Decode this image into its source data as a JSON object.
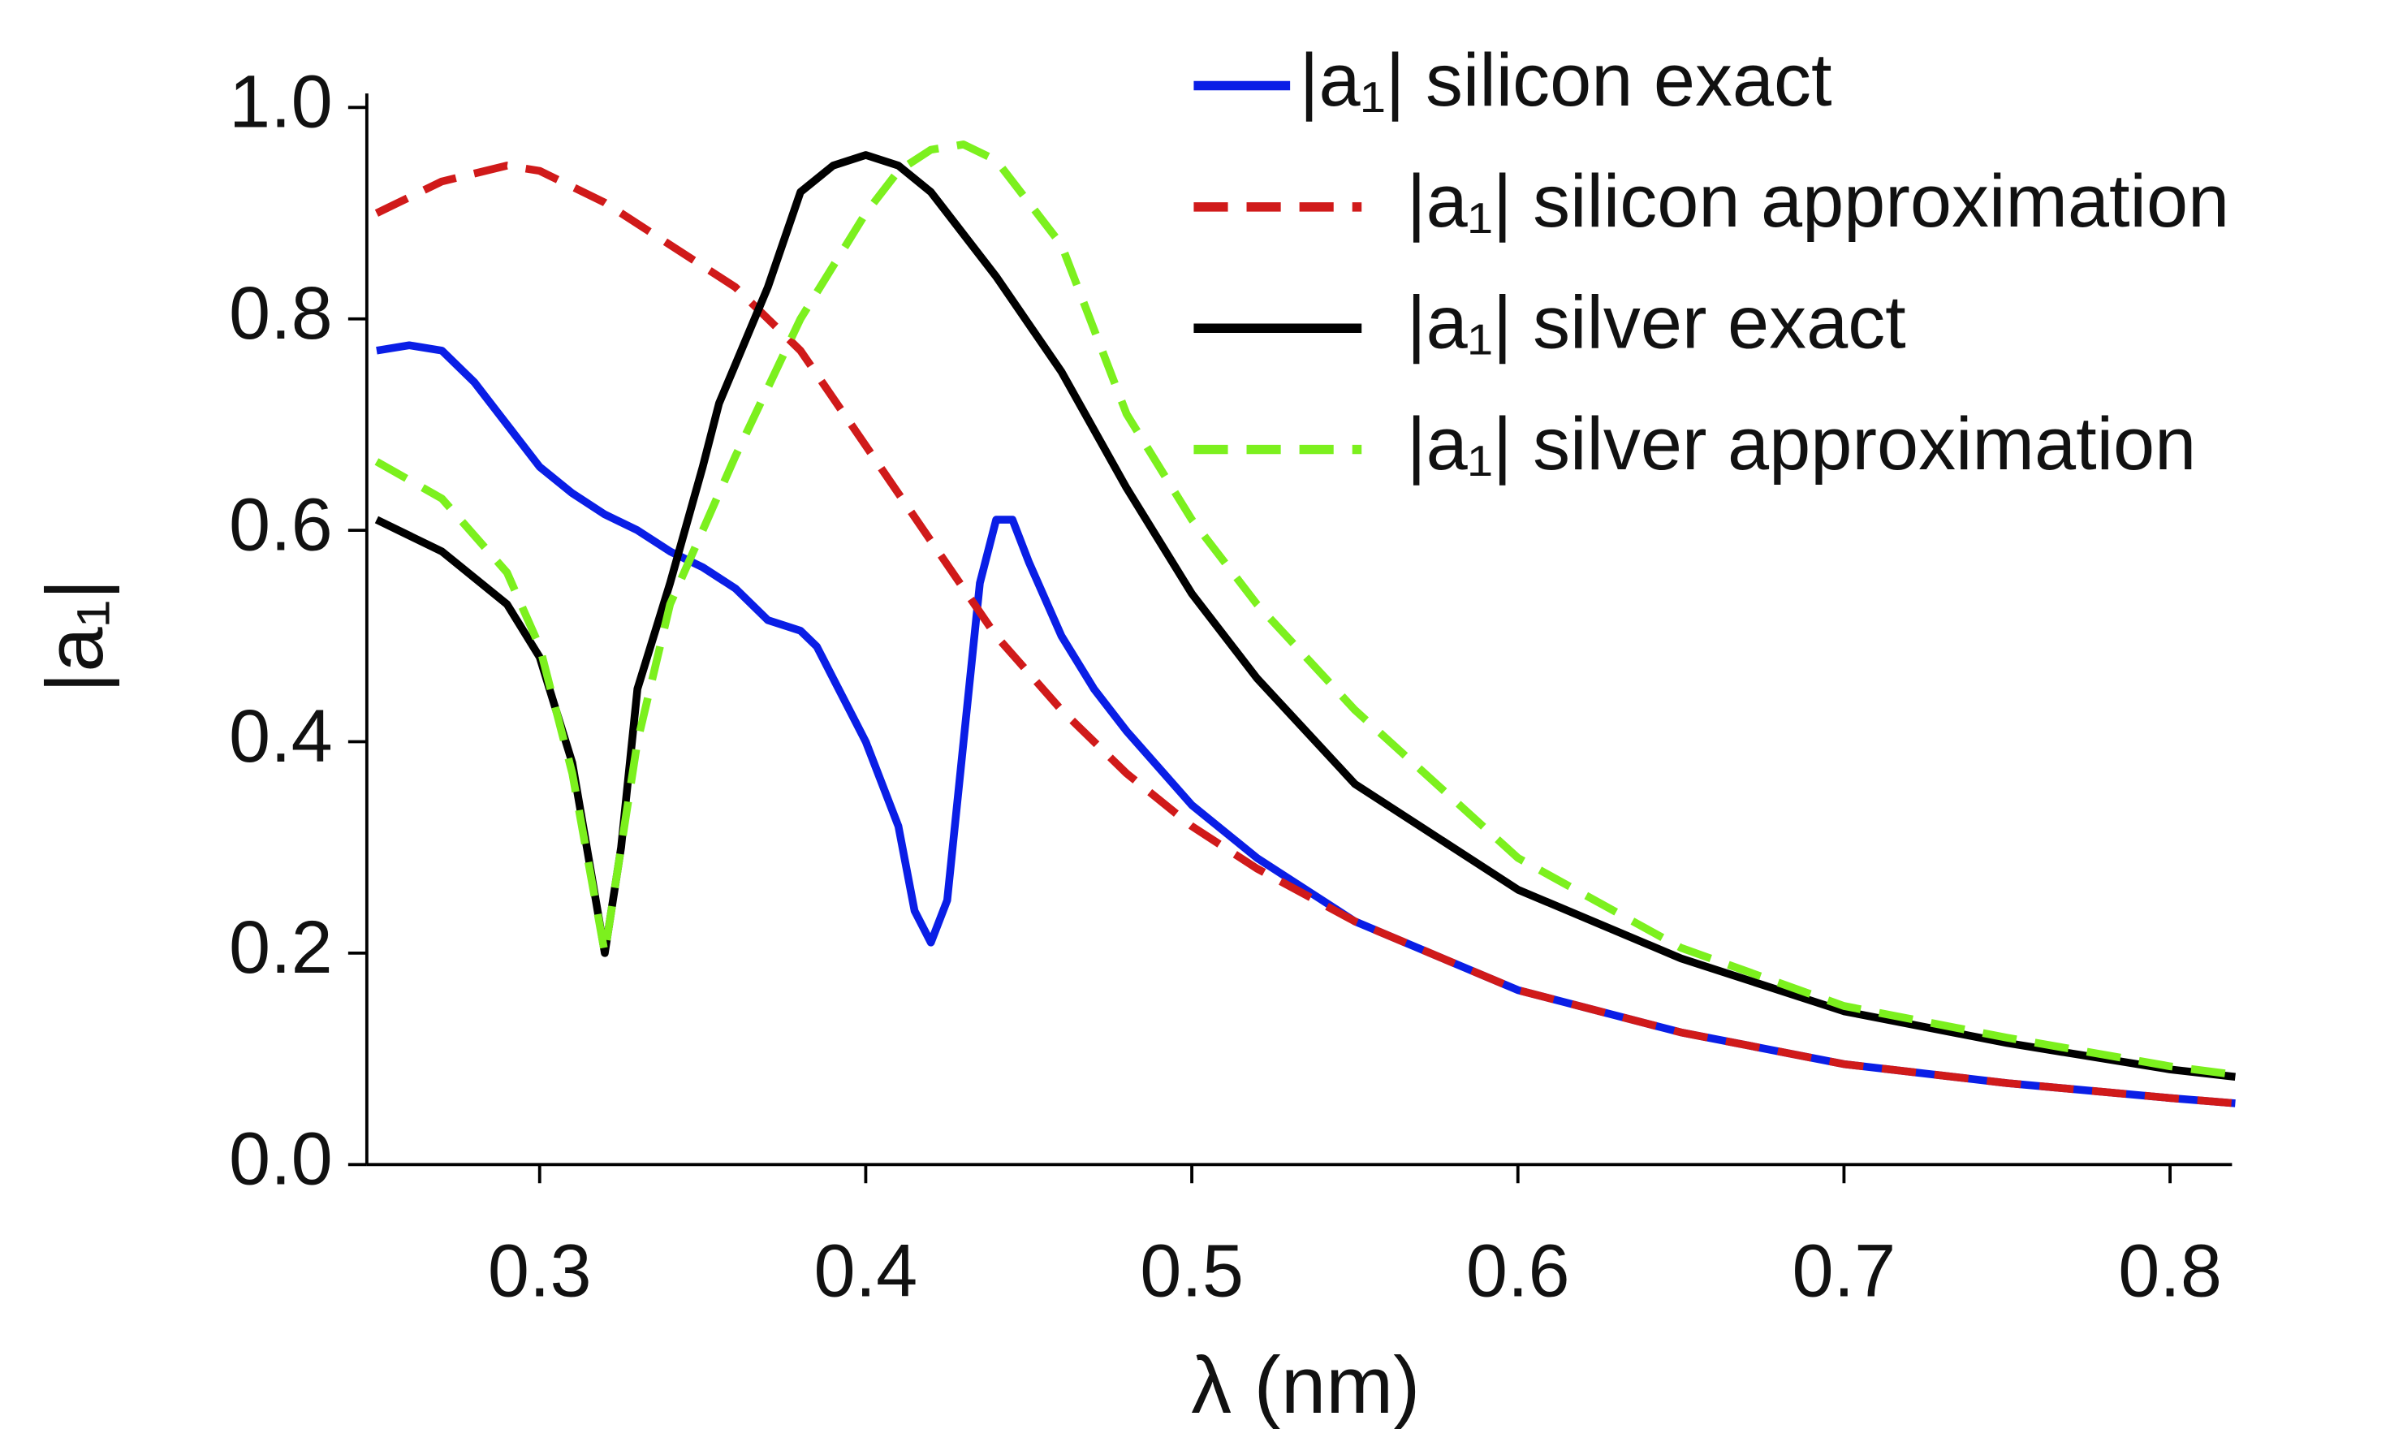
{
  "chart_data": {
    "type": "line",
    "x_label": "λ (nm)",
    "y_label": "|a₁|",
    "xlim": [
      0.247,
      0.819
    ],
    "ylim": [
      0,
      1
    ],
    "xticks": [
      0.3,
      0.4,
      0.5,
      0.6,
      0.7,
      0.8
    ],
    "yticks": [
      {
        "value": 0,
        "label": "0.0"
      },
      0.2,
      0.4,
      0.6,
      0.8,
      {
        "value": 1,
        "label": "1.0"
      }
    ],
    "series": [
      {
        "name": "|a₁| silicon exact",
        "color": "#0a1ee6",
        "dash": "solid",
        "x": [
          0.25,
          0.26,
          0.27,
          0.28,
          0.29,
          0.3,
          0.31,
          0.32,
          0.33,
          0.34,
          0.35,
          0.36,
          0.37,
          0.38,
          0.385,
          0.39,
          0.4,
          0.41,
          0.415,
          0.42,
          0.425,
          0.43,
          0.435,
          0.44,
          0.445,
          0.45,
          0.46,
          0.47,
          0.48,
          0.5,
          0.52,
          0.55,
          0.6,
          0.65,
          0.7,
          0.75,
          0.8,
          0.82
        ],
        "values": [
          0.77,
          0.775,
          0.77,
          0.74,
          0.7,
          0.66,
          0.635,
          0.615,
          0.6,
          0.58,
          0.565,
          0.545,
          0.515,
          0.505,
          0.49,
          0.46,
          0.4,
          0.32,
          0.24,
          0.21,
          0.25,
          0.4,
          0.55,
          0.61,
          0.61,
          0.57,
          0.5,
          0.45,
          0.41,
          0.34,
          0.29,
          0.23,
          0.165,
          0.125,
          0.095,
          0.077,
          0.063,
          0.058
        ]
      },
      {
        "name": "|a₁| silicon approximation",
        "color": "#d01a1a",
        "dash": "dashed",
        "x": [
          0.25,
          0.27,
          0.29,
          0.3,
          0.32,
          0.34,
          0.36,
          0.38,
          0.4,
          0.42,
          0.44,
          0.46,
          0.48,
          0.5,
          0.52,
          0.55,
          0.6,
          0.65,
          0.7,
          0.75,
          0.8,
          0.82
        ],
        "values": [
          0.9,
          0.93,
          0.945,
          0.94,
          0.91,
          0.87,
          0.83,
          0.77,
          0.68,
          0.59,
          0.5,
          0.43,
          0.37,
          0.32,
          0.28,
          0.23,
          0.165,
          0.125,
          0.095,
          0.077,
          0.063,
          0.058
        ]
      },
      {
        "name": "|a₁| silver exact",
        "color": "#000000",
        "dash": "solid",
        "x": [
          0.25,
          0.27,
          0.29,
          0.3,
          0.31,
          0.315,
          0.32,
          0.325,
          0.33,
          0.34,
          0.35,
          0.355,
          0.37,
          0.38,
          0.39,
          0.4,
          0.41,
          0.42,
          0.44,
          0.46,
          0.48,
          0.5,
          0.52,
          0.55,
          0.6,
          0.65,
          0.7,
          0.75,
          0.8,
          0.82
        ],
        "values": [
          0.61,
          0.58,
          0.53,
          0.48,
          0.38,
          0.29,
          0.2,
          0.3,
          0.45,
          0.55,
          0.66,
          0.72,
          0.83,
          0.92,
          0.945,
          0.955,
          0.945,
          0.92,
          0.84,
          0.75,
          0.64,
          0.54,
          0.46,
          0.36,
          0.26,
          0.195,
          0.145,
          0.115,
          0.09,
          0.083
        ]
      },
      {
        "name": "|a₁| silver approximation",
        "color": "#7cf01e",
        "dash": "dashed",
        "x": [
          0.25,
          0.27,
          0.29,
          0.3,
          0.31,
          0.32,
          0.33,
          0.34,
          0.36,
          0.38,
          0.4,
          0.41,
          0.42,
          0.43,
          0.44,
          0.46,
          0.48,
          0.5,
          0.52,
          0.55,
          0.6,
          0.65,
          0.7,
          0.75,
          0.8,
          0.82
        ],
        "values": [
          0.665,
          0.63,
          0.56,
          0.49,
          0.37,
          0.2,
          0.4,
          0.53,
          0.67,
          0.8,
          0.9,
          0.94,
          0.96,
          0.965,
          0.95,
          0.87,
          0.71,
          0.61,
          0.53,
          0.43,
          0.29,
          0.205,
          0.15,
          0.12,
          0.093,
          0.085
        ]
      }
    ]
  }
}
